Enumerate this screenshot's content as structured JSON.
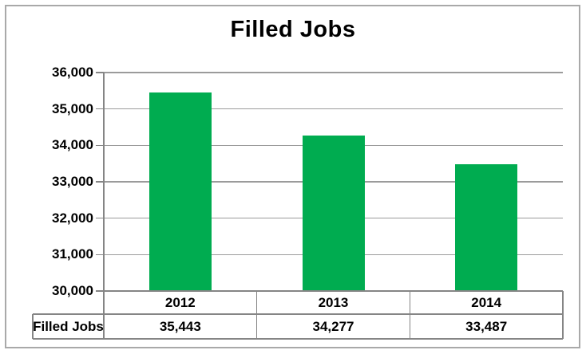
{
  "chart_data": {
    "type": "bar",
    "title": "Filled Jobs",
    "categories": [
      "2012",
      "2013",
      "2014"
    ],
    "series": [
      {
        "name": "Filled Jobs",
        "values": [
          35443,
          34277,
          33487
        ]
      }
    ],
    "value_labels": [
      "35,443",
      "34,277",
      "33,487"
    ],
    "xlabel": "",
    "ylabel": "",
    "ylim": [
      30000,
      36000
    ],
    "ytick_step": 1000,
    "ytick_labels": [
      "30,000",
      "31,000",
      "32,000",
      "33,000",
      "34,000",
      "35,000",
      "36,000"
    ],
    "grid": true,
    "legend_position": "none",
    "data_table_below_chart": true
  },
  "data_table": {
    "row_header": "Filled Jobs",
    "columns": [
      "2012",
      "2013",
      "2014"
    ],
    "values": [
      "35,443",
      "34,277",
      "33,487"
    ]
  },
  "colors": {
    "bar": "#00ac50",
    "gridline": "#9b9b9b",
    "axis_and_table_border": "#858585",
    "chart_border": "#a9a9a9",
    "text": "#000000",
    "background": "#ffffff"
  }
}
